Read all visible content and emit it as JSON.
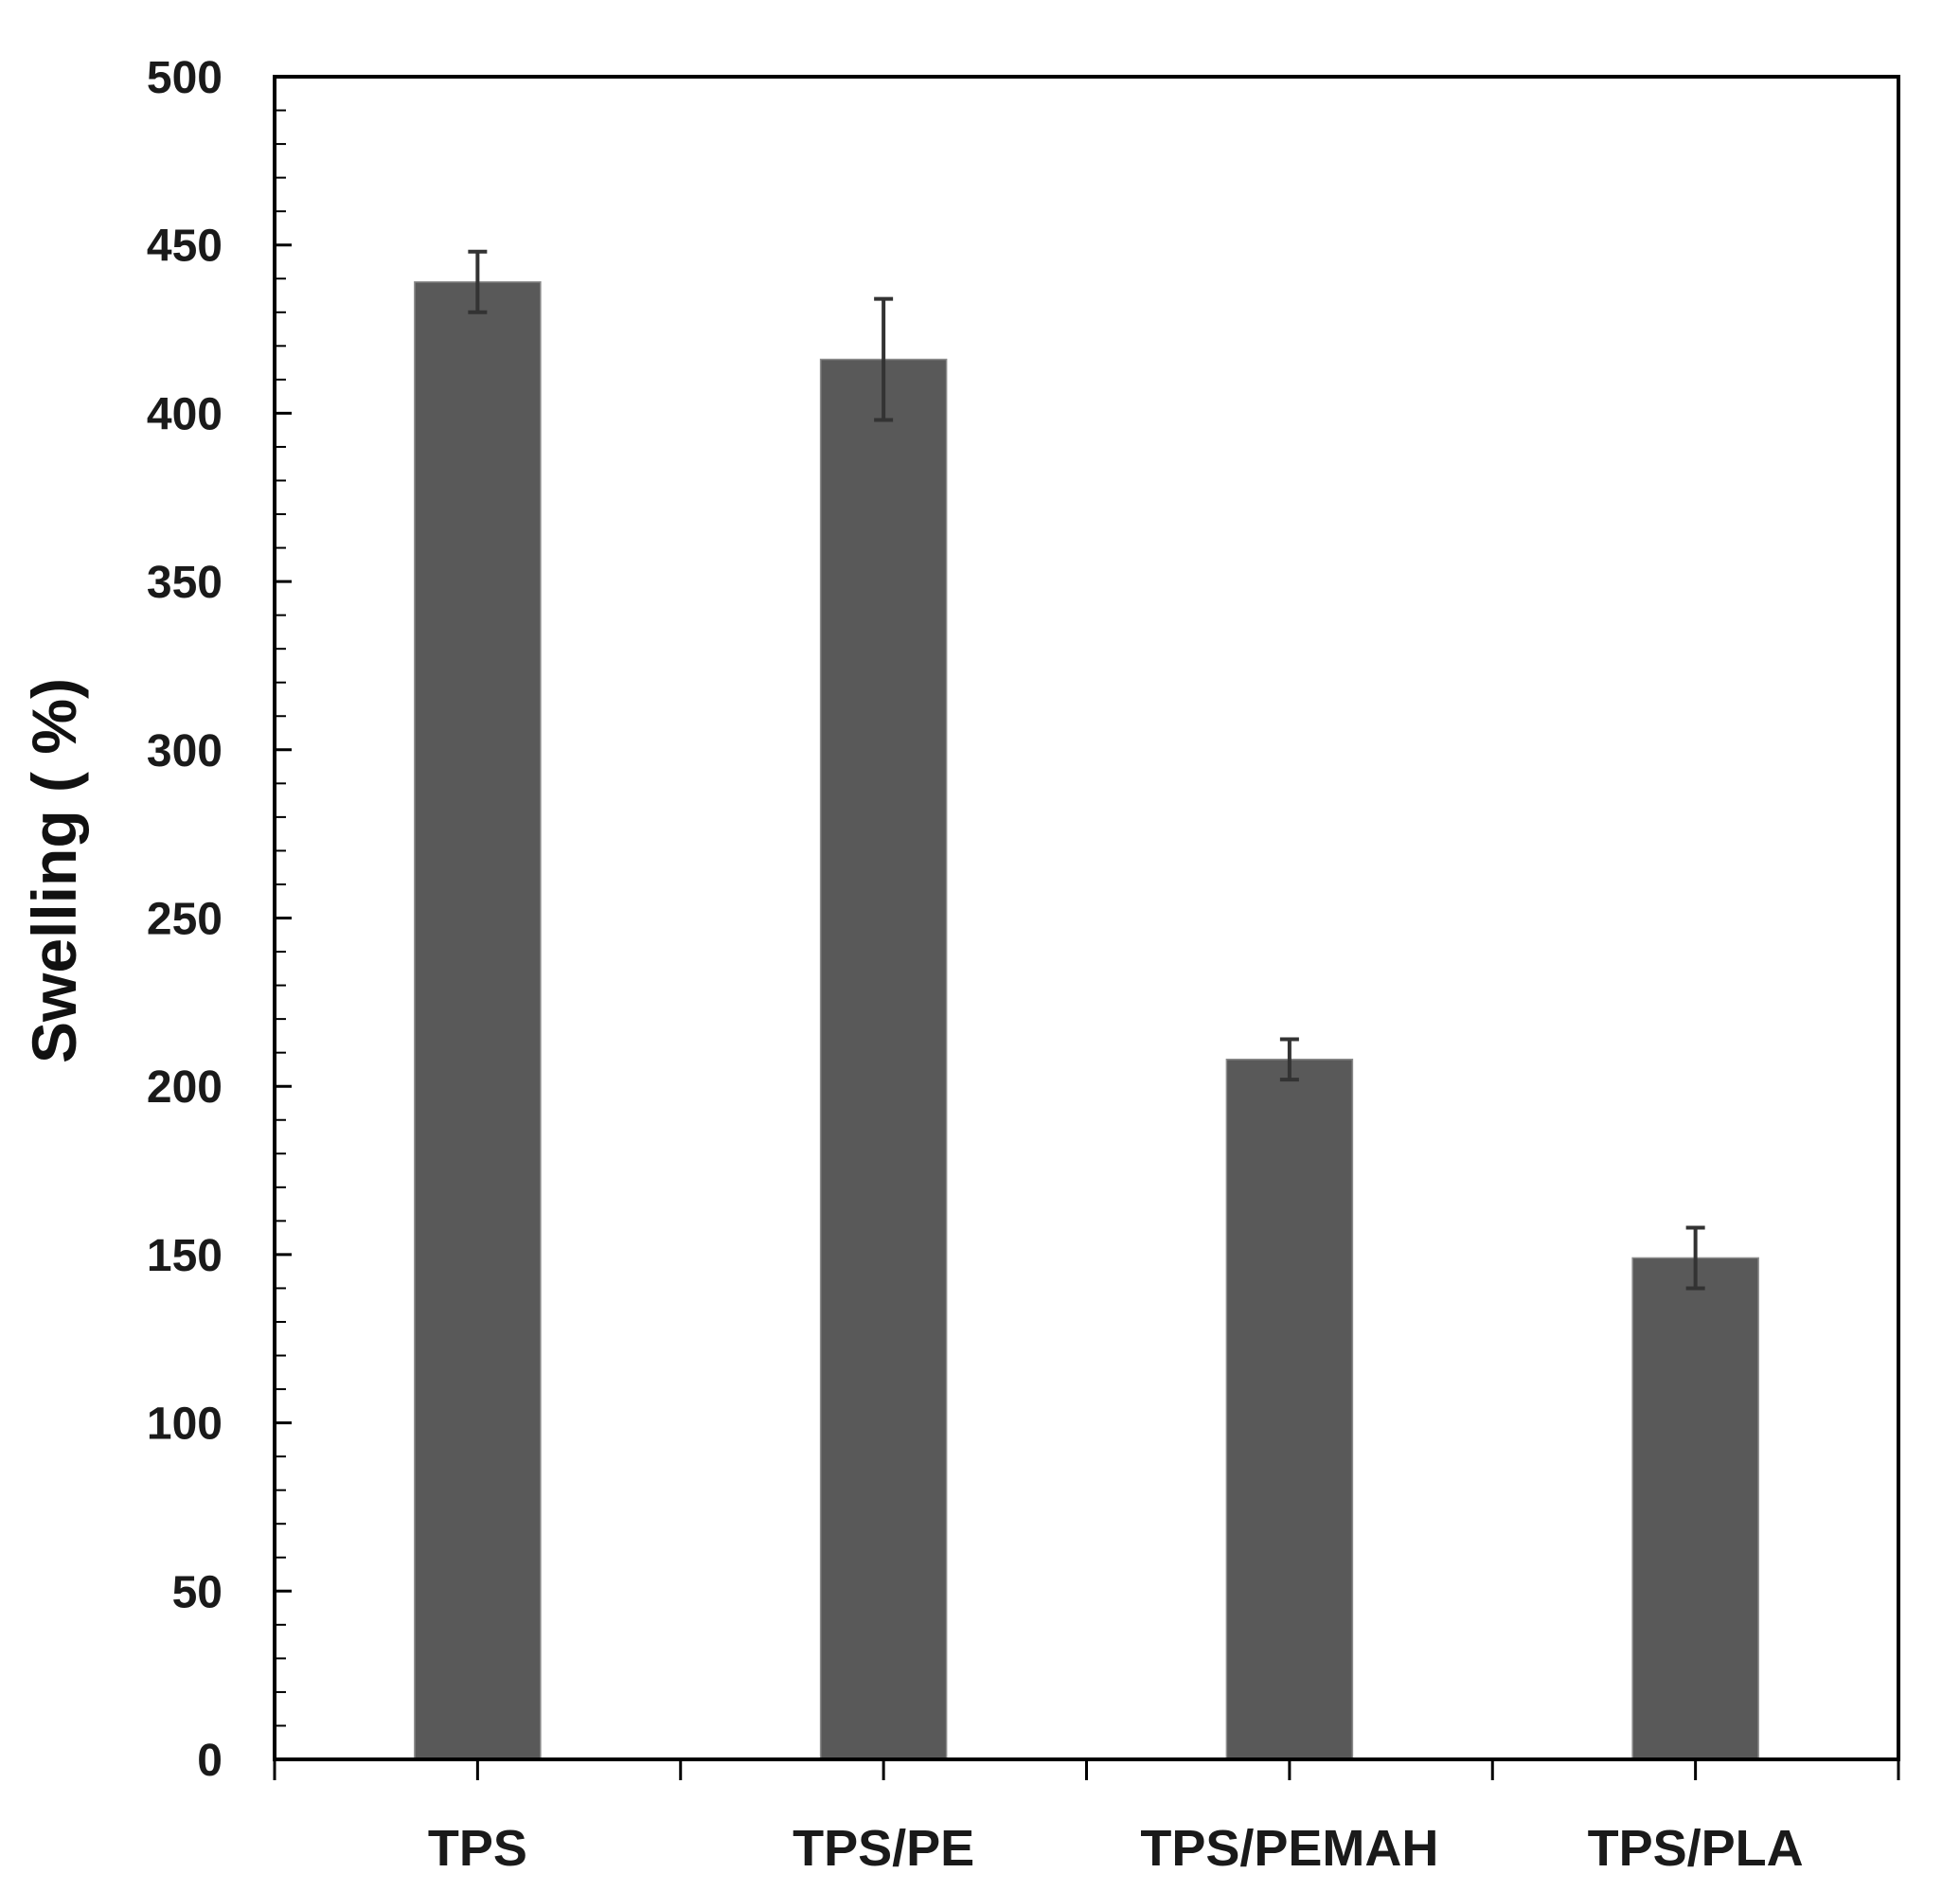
{
  "chart_data": {
    "type": "bar",
    "title": "",
    "xlabel": "",
    "ylabel": "Swelling ( %)",
    "categories": [
      "TPS",
      "TPS/PE",
      "TPS/PEMAH",
      "TPS/PLA"
    ],
    "values": [
      439,
      416,
      208,
      149
    ],
    "error": [
      9,
      18,
      6,
      9
    ],
    "ylim": [
      0,
      500
    ],
    "yticks": [
      0,
      50,
      100,
      150,
      200,
      250,
      300,
      350,
      400,
      450,
      500
    ],
    "ytick_labels": [
      "0",
      "50",
      "100",
      "150",
      "200",
      "250",
      "300",
      "350",
      "400",
      "450",
      "500"
    ],
    "y_minor_step": 10,
    "grid": false,
    "legend": "none",
    "bar_color": "#595959",
    "axis_color": "#000000",
    "errorbar_color": "#333333"
  }
}
